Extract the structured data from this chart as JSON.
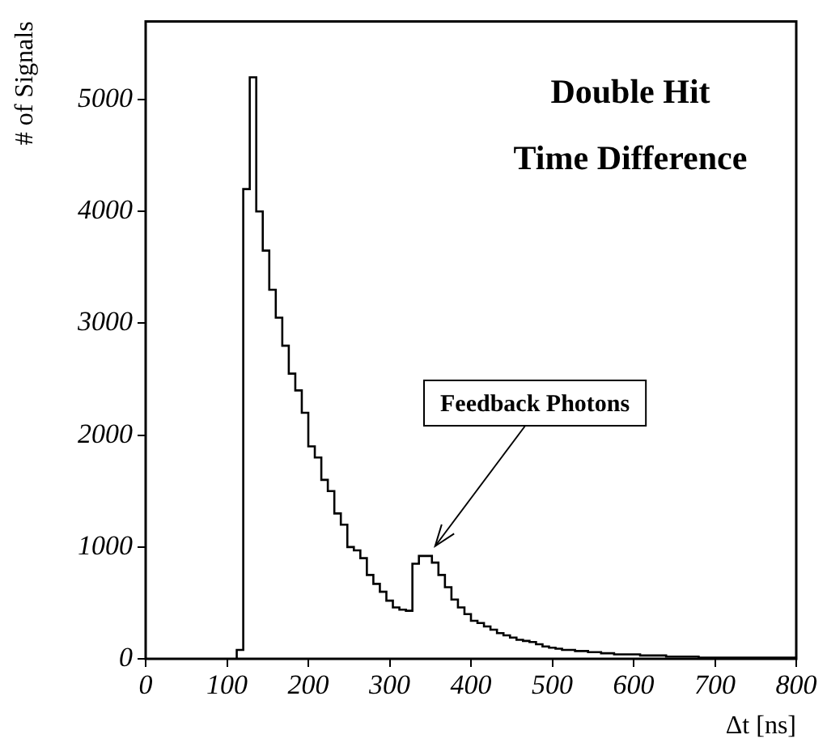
{
  "chart_data": {
    "type": "histogram",
    "title": "Double Hit\nTime Difference",
    "xlabel": "Δt [ns]",
    "ylabel": "# of Signals",
    "annotations": [
      {
        "text": "Feedback Photons",
        "x": 350,
        "y": 950
      }
    ],
    "bins": [
      112,
      120,
      128,
      136,
      144,
      152,
      160,
      168,
      176,
      184,
      192,
      200,
      208,
      216,
      224,
      232,
      240,
      248,
      256,
      264,
      272,
      280,
      288,
      296,
      304,
      312,
      320,
      328,
      336,
      344,
      352,
      360,
      368,
      376,
      384,
      392,
      400,
      408,
      416,
      424,
      432,
      440,
      448,
      456,
      464,
      472,
      480,
      488,
      496,
      504,
      512,
      520,
      528,
      536,
      544,
      552,
      560,
      568,
      576,
      584,
      592,
      600,
      608,
      616,
      624,
      632,
      640,
      648,
      656,
      664,
      672,
      680,
      688,
      696,
      704,
      712,
      720,
      728,
      736,
      744,
      752,
      760,
      768,
      776,
      784,
      792,
      800
    ],
    "values": [
      80,
      4200,
      5200,
      4000,
      3650,
      3300,
      3050,
      2800,
      2550,
      2400,
      2200,
      1900,
      1800,
      1600,
      1500,
      1300,
      1200,
      1000,
      970,
      900,
      750,
      670,
      600,
      520,
      460,
      440,
      430,
      850,
      920,
      920,
      860,
      750,
      640,
      530,
      460,
      400,
      340,
      320,
      290,
      260,
      230,
      210,
      190,
      170,
      160,
      150,
      130,
      110,
      100,
      90,
      80,
      80,
      70,
      70,
      60,
      60,
      50,
      50,
      40,
      40,
      40,
      40,
      30,
      30,
      30,
      30,
      20,
      20,
      20,
      20,
      20,
      10,
      10,
      10,
      10,
      10,
      10,
      10,
      10,
      10,
      10,
      10,
      10,
      10,
      10,
      10
    ],
    "color": "#000000",
    "xlim": [
      0,
      800
    ],
    "xticks": [
      0,
      100,
      200,
      300,
      400,
      500,
      600,
      700,
      800
    ],
    "ylim": [
      0,
      5700
    ],
    "yticks": [
      0,
      1000,
      2000,
      3000,
      4000,
      5000
    ],
    "grid": false,
    "legend": false
  }
}
